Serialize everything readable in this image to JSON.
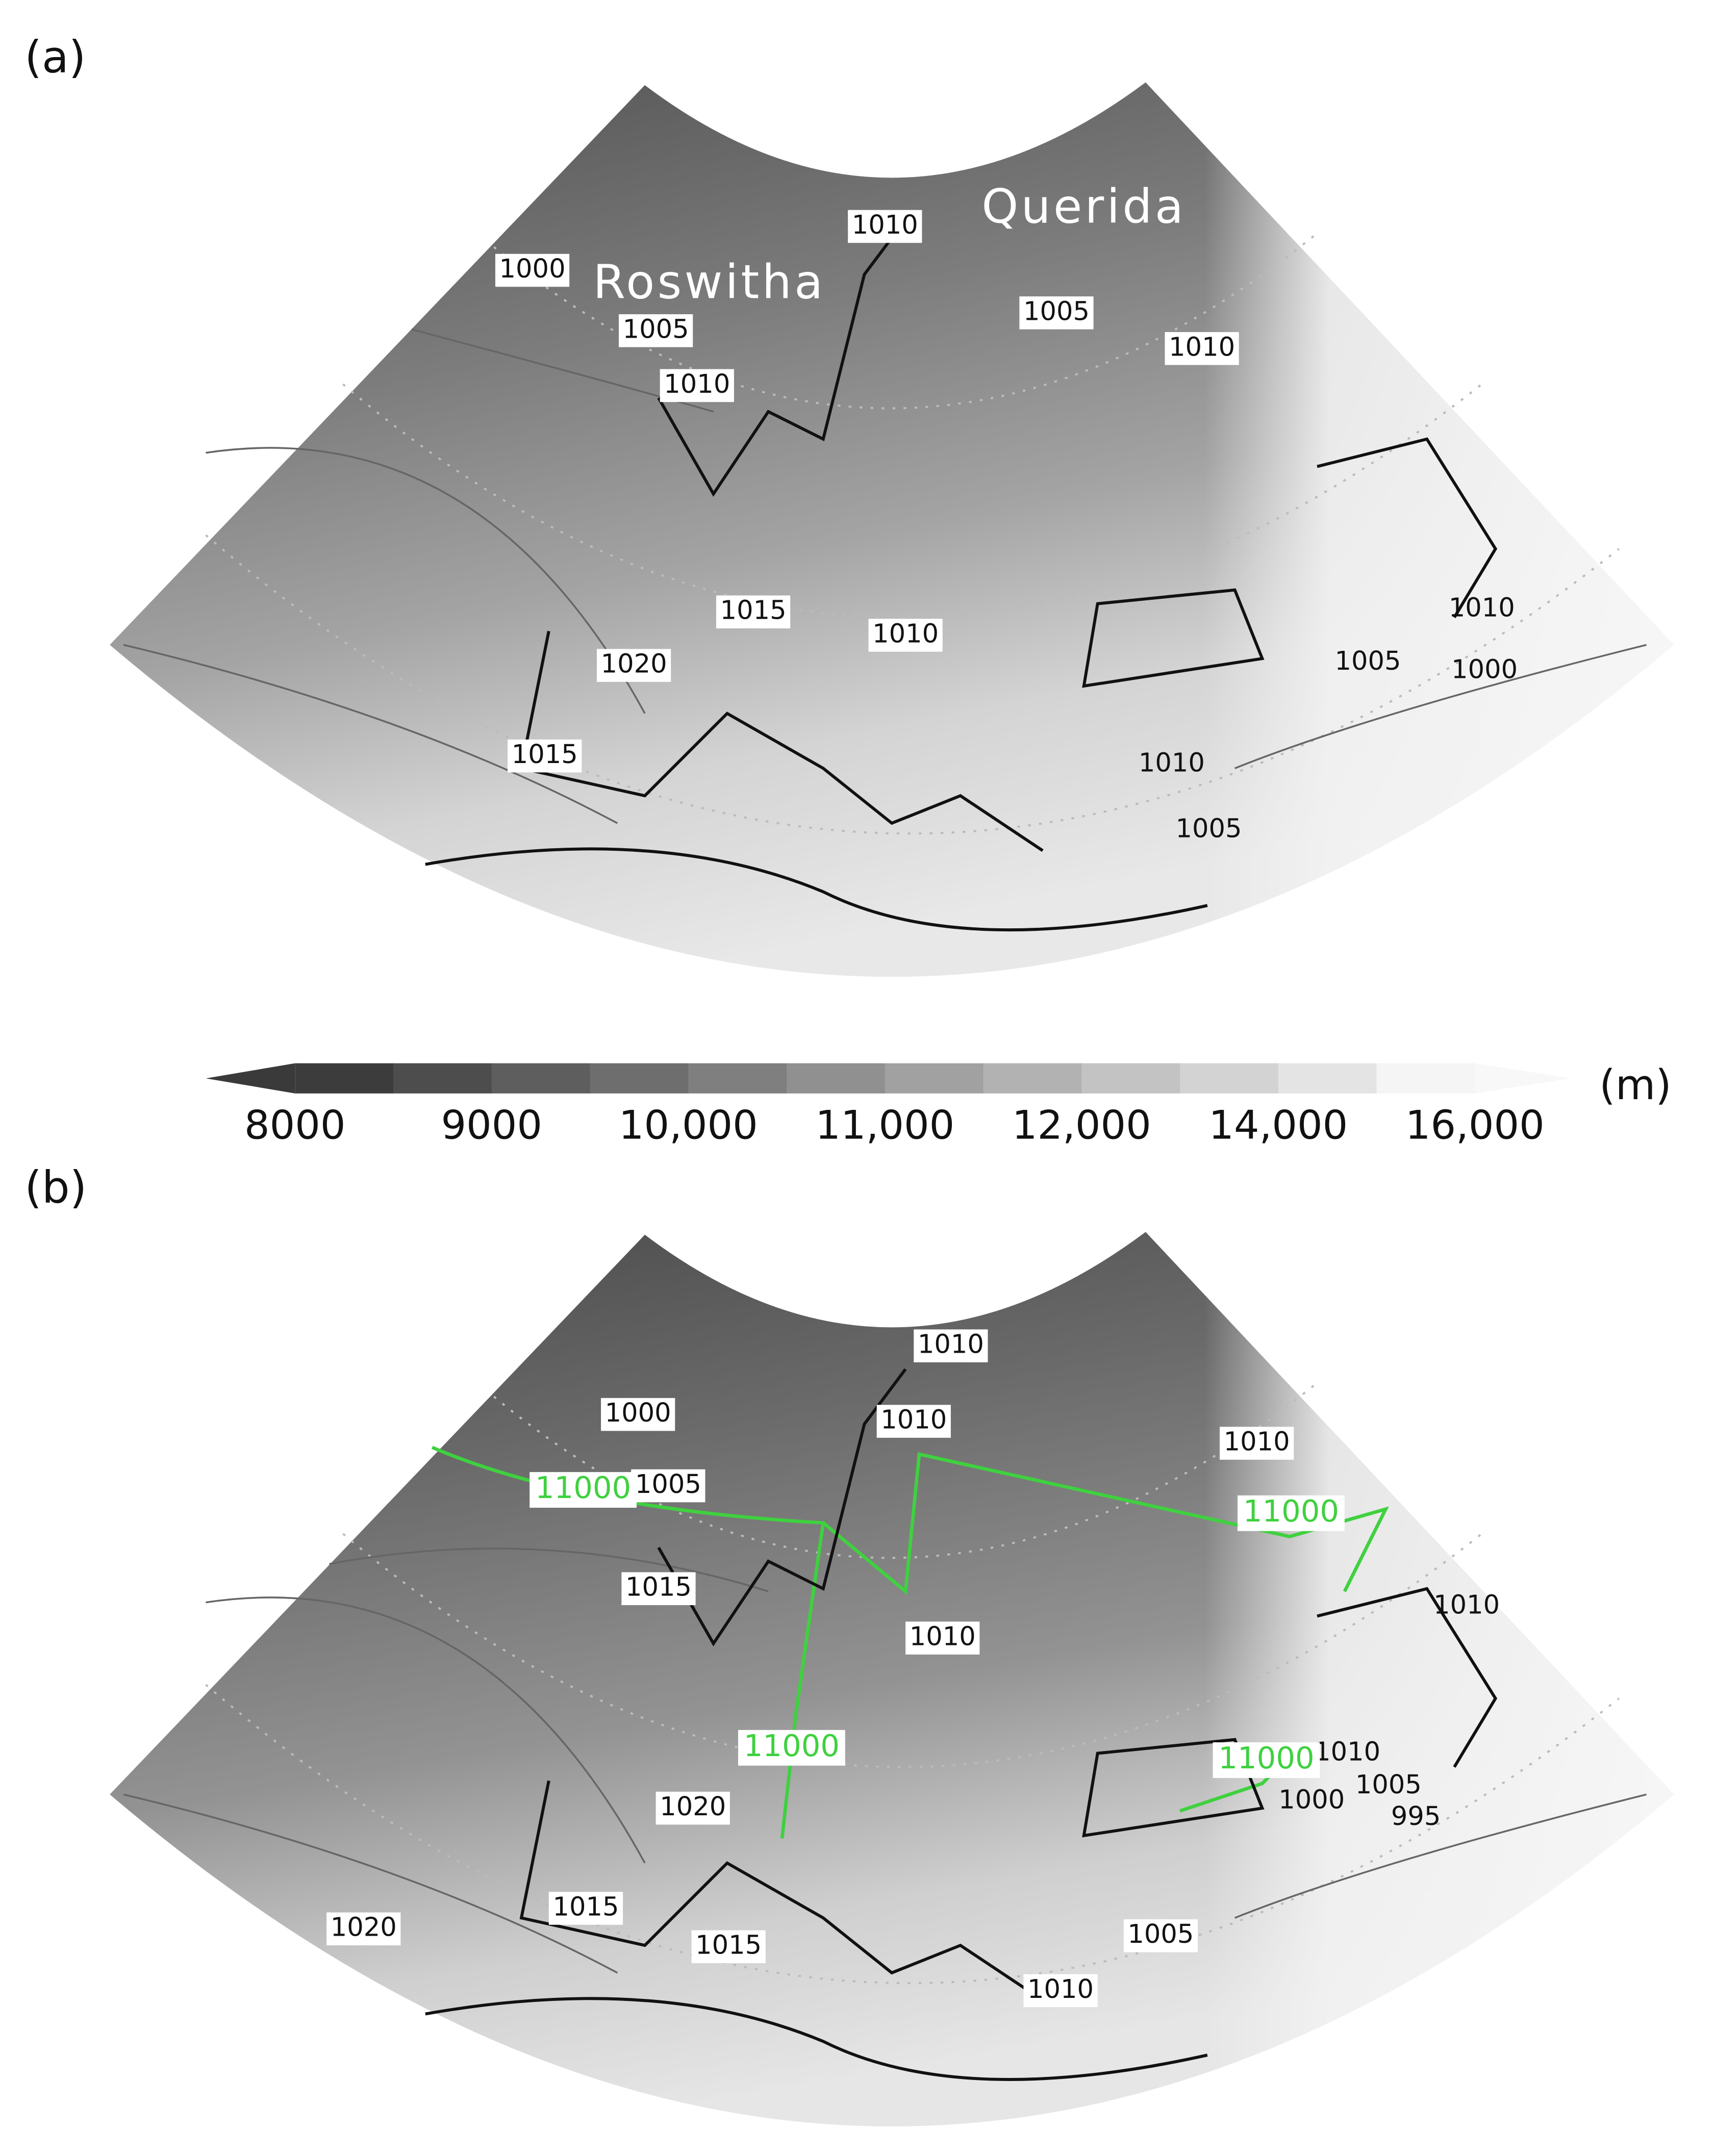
{
  "panels": [
    {
      "label": "(a)",
      "storm_names": [
        "Roswitha",
        "Querida"
      ],
      "contour_labels": [
        "1010",
        "1000",
        "1005",
        "1010",
        "1005",
        "1010",
        "1015",
        "1010",
        "1020",
        "1015",
        "1010",
        "1005",
        "1000",
        "1010",
        "1005"
      ]
    },
    {
      "label": "(b)",
      "storm_names": [],
      "contour_labels": [
        "1010",
        "1000",
        "1010",
        "1010",
        "1005",
        "1015",
        "1010",
        "1010",
        "1010",
        "1005",
        "1000",
        "995",
        "1020",
        "1015",
        "1015",
        "1020",
        "1005",
        "1010"
      ],
      "highlight_labels": [
        "11000",
        "11000",
        "11000",
        "11000"
      ]
    }
  ],
  "colorbar": {
    "ticks": [
      "8000",
      "9000",
      "10,000",
      "11,000",
      "12,000",
      "14,000",
      "16,000"
    ],
    "unit": "(m)"
  }
}
